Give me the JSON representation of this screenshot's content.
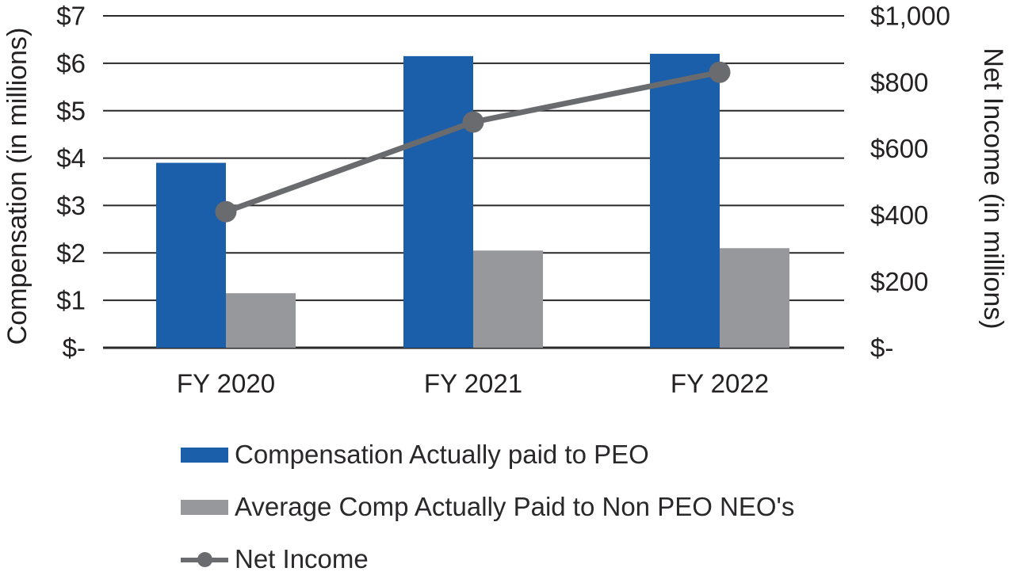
{
  "chart_data": {
    "type": "combo-bar-line",
    "title": "",
    "categories": [
      "FY 2020",
      "FY 2021",
      "FY 2022"
    ],
    "series": [
      {
        "name": "Compensation Actually paid to PEO",
        "type": "bar",
        "axis": "left",
        "color": "#1B5EA9",
        "values": [
          3.9,
          6.15,
          6.2
        ]
      },
      {
        "name": "Average Comp Actually Paid to Non PEO NEO's",
        "type": "bar",
        "axis": "left",
        "color": "#97989B",
        "values": [
          1.15,
          2.05,
          2.1
        ]
      },
      {
        "name": "Net Income",
        "type": "line",
        "axis": "right",
        "color": "#6A6B6E",
        "values": [
          410,
          680,
          830
        ]
      }
    ],
    "left_axis": {
      "title": "Compensation (in millions)",
      "min": 0,
      "max": 7,
      "tick_step": 1,
      "tick_labels": [
        "$-",
        "$1",
        "$2",
        "$3",
        "$4",
        "$5",
        "$6",
        "$7"
      ]
    },
    "right_axis": {
      "title": "Net Income (in millions)",
      "min": 0,
      "max": 1000,
      "tick_step": 200,
      "tick_labels": [
        "$-",
        "$200",
        "$400",
        "$600",
        "$800",
        "$1,000"
      ]
    },
    "grid": "horizontal",
    "gridline_color": "#2a2829",
    "text_color": "#242122",
    "legend_position": "bottom-left"
  }
}
